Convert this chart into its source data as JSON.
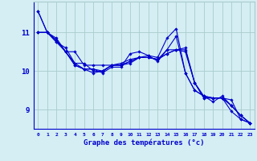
{
  "xlabel": "Graphe des températures (°c)",
  "background_color": "#d4eef4",
  "line_color": "#0000cc",
  "grid_color": "#aacccc",
  "hours": [
    0,
    1,
    2,
    3,
    4,
    5,
    6,
    7,
    8,
    9,
    10,
    11,
    12,
    13,
    14,
    15,
    16,
    17,
    18,
    19,
    20,
    21,
    22,
    23
  ],
  "ylim": [
    8.5,
    11.8
  ],
  "xlim": [
    -0.5,
    23.5
  ],
  "series": [
    [
      11.55,
      11.0,
      10.85,
      10.5,
      10.15,
      10.05,
      10.05,
      9.95,
      10.1,
      10.1,
      10.45,
      10.5,
      10.4,
      10.25,
      10.55,
      10.9,
      9.95,
      9.5,
      9.35,
      9.3,
      9.3,
      8.95,
      8.75,
      8.65
    ],
    [
      11.55,
      11.0,
      10.8,
      10.5,
      10.5,
      10.15,
      10.15,
      10.15,
      10.15,
      10.15,
      10.2,
      10.35,
      10.4,
      10.35,
      10.85,
      11.1,
      9.95,
      9.5,
      9.35,
      9.3,
      9.3,
      9.25,
      8.75,
      8.65
    ],
    [
      11.0,
      11.0,
      10.8,
      10.5,
      10.15,
      10.05,
      9.95,
      10.0,
      10.15,
      10.2,
      10.3,
      10.35,
      10.35,
      10.3,
      10.55,
      10.55,
      10.6,
      9.7,
      9.35,
      9.2,
      9.35,
      9.1,
      8.85,
      8.65
    ],
    [
      11.0,
      11.0,
      10.75,
      10.5,
      10.2,
      10.05,
      10.05,
      10.0,
      10.15,
      10.15,
      10.25,
      10.35,
      10.35,
      10.3,
      10.45,
      10.55,
      10.55,
      9.7,
      9.3,
      9.3,
      9.3,
      9.1,
      8.85,
      8.65
    ],
    [
      11.0,
      11.0,
      10.75,
      10.6,
      10.2,
      10.2,
      10.0,
      9.98,
      10.15,
      10.15,
      10.25,
      10.35,
      10.35,
      10.3,
      10.45,
      10.55,
      10.5,
      9.7,
      9.3,
      9.3,
      9.3,
      9.1,
      8.85,
      8.65
    ]
  ],
  "yticks": [
    9,
    10,
    11
  ],
  "xticks": [
    0,
    1,
    2,
    3,
    4,
    5,
    6,
    7,
    8,
    9,
    10,
    11,
    12,
    13,
    14,
    15,
    16,
    17,
    18,
    19,
    20,
    21,
    22,
    23
  ]
}
